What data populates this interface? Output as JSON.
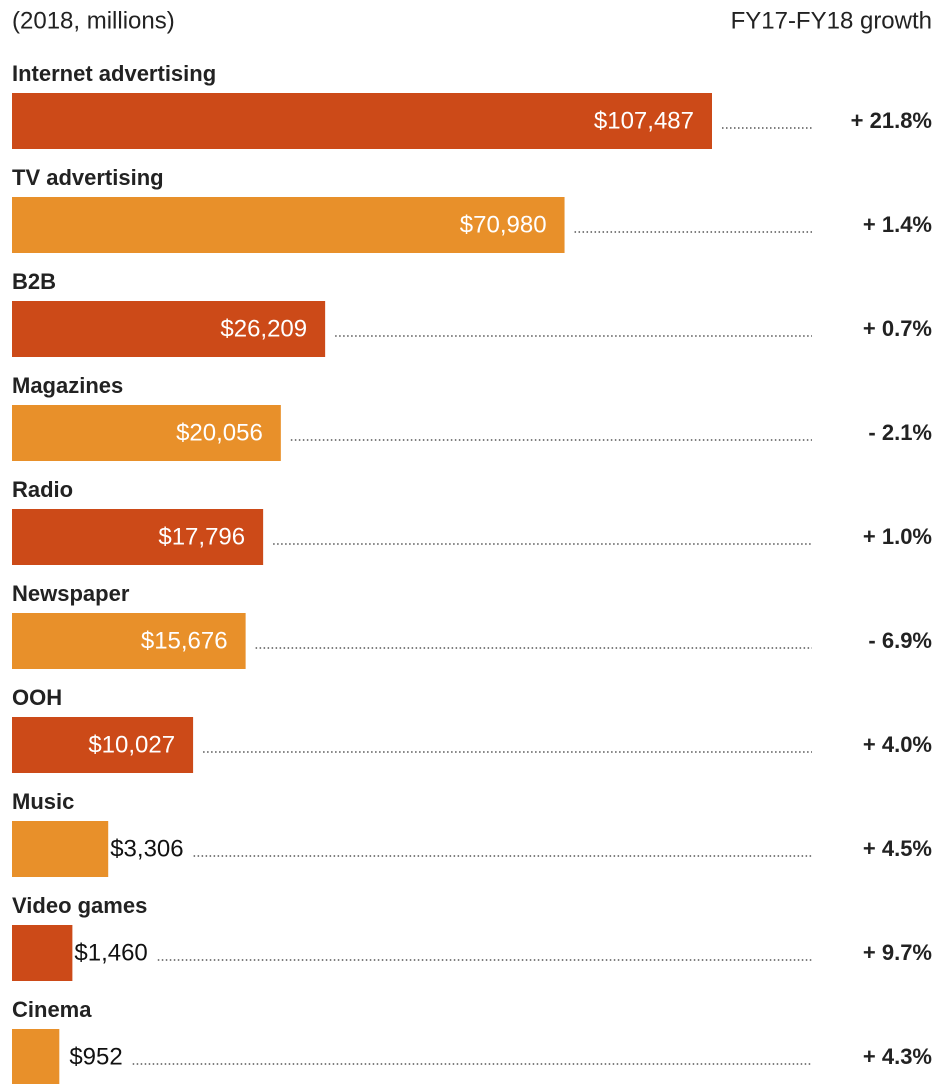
{
  "chart_data": {
    "type": "bar",
    "subtitle": "(2018, millions)",
    "growth_header": "FY17-FY18 growth",
    "categories": [
      "Internet advertising",
      "TV advertising",
      "B2B",
      "Magazines",
      "Radio",
      "Newspaper",
      "OOH",
      "Music",
      "Video games",
      "Cinema"
    ],
    "values": [
      107487,
      70980,
      26209,
      20056,
      17796,
      15676,
      10027,
      3306,
      1460,
      952
    ],
    "value_labels": [
      "$107,487",
      "$70,980",
      "$26,209",
      "$20,056",
      "$17,796",
      "$15,676",
      "$10,027",
      "$3,306",
      "$1,460",
      "$952"
    ],
    "growth": [
      "+ 21.8%",
      "+ 1.4%",
      "+ 0.7%",
      "- 2.1%",
      "+ 1.0%",
      "- 6.9%",
      "+ 4.0%",
      "+ 4.5%",
      "+ 9.7%",
      "+ 4.3%"
    ],
    "colors": [
      "#cc4a18",
      "#e8902a",
      "#cc4a18",
      "#e8902a",
      "#cc4a18",
      "#e8902a",
      "#cc4a18",
      "#e8902a",
      "#cc4a18",
      "#e8902a"
    ]
  }
}
